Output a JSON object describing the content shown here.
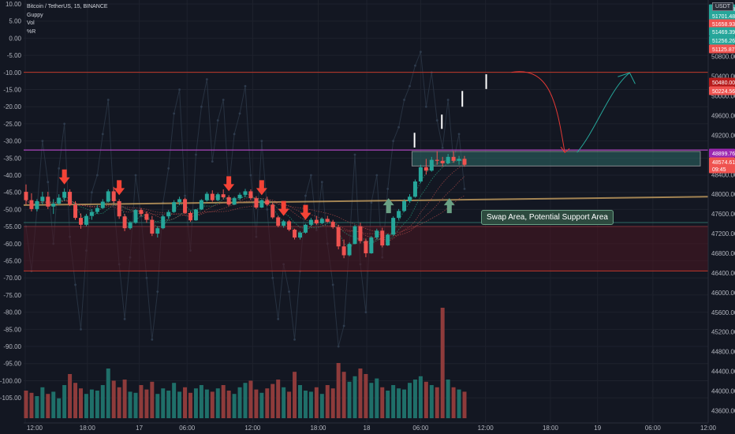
{
  "header": {
    "symbol_line": "Bitcoin / TetherUS, 15, BINANCE",
    "indicators": [
      "Guppy",
      "Vol",
      "%R"
    ]
  },
  "unit_badge": "USDT",
  "annotation": {
    "swap_label": "Swap Area, Potential Support Area"
  },
  "price_badges": [
    {
      "value": "51704.38",
      "color": "#26a69a"
    },
    {
      "value": "51701.48",
      "color": "#26a69a"
    },
    {
      "value": "51658.93",
      "color": "#ef5350"
    },
    {
      "value": "51469.39",
      "color": "#26a69a"
    },
    {
      "value": "51256.26",
      "color": "#26a69a"
    },
    {
      "value": "51125.87",
      "color": "#ef5350"
    },
    {
      "value": "50480.00",
      "color": "#b71c1c"
    },
    {
      "value": "50224.56",
      "color": "#ef5350"
    },
    {
      "value": "48899.76",
      "color": "#9c27b0"
    },
    {
      "value": "48574.61",
      "color": "#ef5350"
    },
    {
      "value": "09:45",
      "color": "#ef5350"
    }
  ],
  "colors": {
    "background": "#131722",
    "up": "#26a69a",
    "down": "#ef5350",
    "resistance_line": "#c0392b",
    "purple_line": "#ab47bc",
    "zone_fill": "#4a1520",
    "swap_box": "#2d6a66",
    "trend_line": "#c8a060",
    "arrow_down": "#f44336",
    "arrow_up": "#6aa084"
  },
  "chart_data": {
    "type": "candlestick",
    "price_axis": {
      "ticks": [
        50800,
        50400,
        50000,
        49600,
        49200,
        48800,
        48400,
        48000,
        47600,
        47200,
        46800,
        46400,
        46000,
        45600,
        45200,
        44800,
        44400,
        44000,
        43600
      ],
      "labels": [
        "50800.00",
        "50400.00",
        "50000.00",
        "49600.00",
        "49200.00",
        "48800.00",
        "48400.00",
        "48000.00",
        "47600.00",
        "47200.00",
        "46800.00",
        "46400.00",
        "46000.00",
        "45600.00",
        "45200.00",
        "44800.00",
        "44400.00",
        "44000.00",
        "43600.00"
      ],
      "range": [
        43350,
        51950
      ]
    },
    "williams_r_axis": {
      "labels": [
        "10.00",
        "5.00",
        "0.00",
        "-5.00",
        "-10.00",
        "-15.00",
        "-20.00",
        "-25.00",
        "-30.00",
        "-35.00",
        "-40.00",
        "-45.00",
        "-50.00",
        "-55.00",
        "-60.00",
        "-65.00",
        "-70.00",
        "-75.00",
        "-80.00",
        "-85.00",
        "-90.00",
        "-95.00",
        "-100.00",
        "-105.00"
      ],
      "range": [
        -107.5,
        10
      ]
    },
    "time_axis": {
      "labels": [
        "12:00",
        "18:00",
        "17",
        "06:00",
        "12:00",
        "18:00",
        "18",
        "06:00",
        "12:00",
        "18:00",
        "19",
        "06:00",
        "12:00"
      ],
      "positions": [
        0.0,
        0.091,
        0.167,
        0.237,
        0.333,
        0.429,
        0.5,
        0.579,
        0.674,
        0.769,
        0.838,
        0.919,
        1.0
      ]
    },
    "levels": {
      "resistance": 50480,
      "purple": 48899.76,
      "swap_box": [
        48574.61,
        48870
      ],
      "trend_line": {
        "from": 47780,
        "to": 47950
      },
      "support_line": 47425,
      "zone": [
        46440,
        47345
      ]
    },
    "candles": [
      [
        48050,
        48200,
        47790,
        47880
      ],
      [
        47880,
        48020,
        47650,
        47700
      ],
      [
        47700,
        47900,
        47650,
        47860
      ],
      [
        47860,
        48050,
        47800,
        47950
      ],
      [
        47950,
        48050,
        47700,
        47750
      ],
      [
        47750,
        47900,
        47600,
        47810
      ],
      [
        47810,
        48000,
        47780,
        47930
      ],
      [
        47930,
        48120,
        47870,
        48050
      ],
      [
        48050,
        48100,
        47760,
        47790
      ],
      [
        47790,
        47860,
        47480,
        47520
      ],
      [
        47520,
        47610,
        47300,
        47380
      ],
      [
        47380,
        47600,
        47350,
        47560
      ],
      [
        47560,
        47700,
        47480,
        47640
      ],
      [
        47640,
        47780,
        47600,
        47720
      ],
      [
        47720,
        47900,
        47700,
        47850
      ],
      [
        47850,
        48100,
        47830,
        48060
      ],
      [
        48060,
        48150,
        47820,
        47860
      ],
      [
        47860,
        47900,
        47500,
        47550
      ],
      [
        47550,
        47600,
        47250,
        47310
      ],
      [
        47310,
        47450,
        47280,
        47420
      ],
      [
        47420,
        47700,
        47400,
        47680
      ],
      [
        47680,
        47720,
        47550,
        47600
      ],
      [
        47600,
        47650,
        47420,
        47480
      ],
      [
        47480,
        47560,
        47150,
        47200
      ],
      [
        47200,
        47350,
        47120,
        47310
      ],
      [
        47310,
        47580,
        47290,
        47550
      ],
      [
        47550,
        47680,
        47500,
        47640
      ],
      [
        47640,
        47880,
        47620,
        47840
      ],
      [
        47840,
        47950,
        47780,
        47900
      ],
      [
        47900,
        47930,
        47600,
        47620
      ],
      [
        47620,
        47650,
        47440,
        47470
      ],
      [
        47470,
        47700,
        47460,
        47690
      ],
      [
        47690,
        47900,
        47680,
        47880
      ],
      [
        47880,
        48050,
        47860,
        48010
      ],
      [
        48010,
        48080,
        47850,
        47880
      ],
      [
        47880,
        48030,
        47860,
        48000
      ],
      [
        48000,
        48100,
        47900,
        47940
      ],
      [
        47940,
        47980,
        47760,
        47790
      ],
      [
        47790,
        47950,
        47780,
        47920
      ],
      [
        47920,
        48030,
        47880,
        47990
      ],
      [
        47990,
        48110,
        47940,
        48060
      ],
      [
        48060,
        48100,
        47880,
        47920
      ],
      [
        47920,
        47960,
        47700,
        47730
      ],
      [
        47730,
        47900,
        47720,
        47880
      ],
      [
        47880,
        47950,
        47760,
        47790
      ],
      [
        47790,
        47830,
        47500,
        47530
      ],
      [
        47530,
        47560,
        47330,
        47360
      ],
      [
        47360,
        47480,
        47320,
        47450
      ],
      [
        47450,
        47480,
        47250,
        47280
      ],
      [
        47280,
        47300,
        47080,
        47120
      ],
      [
        47120,
        47250,
        47080,
        47220
      ],
      [
        47220,
        47400,
        47200,
        47380
      ],
      [
        47380,
        47520,
        47350,
        47480
      ],
      [
        47480,
        47560,
        47380,
        47410
      ],
      [
        47410,
        47530,
        47390,
        47500
      ],
      [
        47500,
        47560,
        47420,
        47440
      ],
      [
        47440,
        47480,
        47300,
        47330
      ],
      [
        47330,
        47380,
        46880,
        46940
      ],
      [
        46940,
        47080,
        46700,
        46760
      ],
      [
        46760,
        47020,
        46740,
        46990
      ],
      [
        46990,
        47380,
        46980,
        47350
      ],
      [
        47350,
        47420,
        47000,
        47050
      ],
      [
        47050,
        47100,
        46720,
        46800
      ],
      [
        46800,
        47150,
        46790,
        47120
      ],
      [
        47120,
        47300,
        47080,
        47260
      ],
      [
        47260,
        47320,
        46920,
        46960
      ],
      [
        46960,
        47200,
        46950,
        47180
      ],
      [
        47180,
        47550,
        47160,
        47520
      ],
      [
        47520,
        47700,
        47480,
        47660
      ],
      [
        47660,
        47900,
        47640,
        47860
      ],
      [
        47860,
        48000,
        47830,
        47950
      ],
      [
        47950,
        48300,
        47930,
        48260
      ],
      [
        48260,
        48600,
        48230,
        48550
      ],
      [
        48550,
        48720,
        48400,
        48480
      ],
      [
        48480,
        48760,
        48460,
        48700
      ],
      [
        48700,
        48880,
        48600,
        48680
      ],
      [
        48680,
        48760,
        48560,
        48630
      ],
      [
        48630,
        48820,
        48610,
        48760
      ],
      [
        48760,
        48880,
        48640,
        48680
      ],
      [
        48680,
        48780,
        48600,
        48720
      ],
      [
        48720,
        48780,
        48560,
        48600
      ]
    ],
    "volumes": [
      0.25,
      0.23,
      0.2,
      0.28,
      0.22,
      0.24,
      0.18,
      0.3,
      0.4,
      0.32,
      0.27,
      0.22,
      0.26,
      0.25,
      0.3,
      0.45,
      0.34,
      0.28,
      0.35,
      0.24,
      0.23,
      0.3,
      0.26,
      0.33,
      0.22,
      0.27,
      0.25,
      0.32,
      0.24,
      0.28,
      0.23,
      0.27,
      0.3,
      0.26,
      0.24,
      0.27,
      0.3,
      0.25,
      0.22,
      0.28,
      0.32,
      0.34,
      0.26,
      0.23,
      0.27,
      0.31,
      0.35,
      0.28,
      0.24,
      0.42,
      0.3,
      0.25,
      0.24,
      0.28,
      0.22,
      0.3,
      0.27,
      0.5,
      0.42,
      0.33,
      0.38,
      0.45,
      0.4,
      0.32,
      0.36,
      0.28,
      0.25,
      0.3,
      0.27,
      0.26,
      0.32,
      0.35,
      0.38,
      0.33,
      0.3,
      0.28,
      1.0,
      0.35,
      0.28,
      0.26,
      0.24
    ],
    "williams_r": [
      -55,
      -68,
      -50,
      -30,
      -42,
      -60,
      -38,
      -25,
      -58,
      -72,
      -85,
      -62,
      -45,
      -40,
      -28,
      -18,
      -48,
      -66,
      -82,
      -64,
      -40,
      -52,
      -70,
      -88,
      -74,
      -48,
      -38,
      -22,
      -15,
      -46,
      -62,
      -34,
      -20,
      -12,
      -36,
      -24,
      -18,
      -44,
      -28,
      -22,
      -14,
      -40,
      -58,
      -30,
      -50,
      -70,
      -82,
      -66,
      -74,
      -88,
      -68,
      -46,
      -40,
      -56,
      -42,
      -60,
      -72,
      -90,
      -84,
      -60,
      -34,
      -66,
      -80,
      -48,
      -40,
      -64,
      -44,
      -30,
      -26,
      -18,
      -14,
      -8,
      -4,
      -20,
      -10,
      -24,
      -32,
      -18,
      -36,
      -28,
      -44
    ],
    "red_arrow_candles": [
      7,
      17,
      37,
      43,
      47,
      51
    ],
    "green_arrow_x": [
      0.532,
      0.621
    ],
    "projection_steps": [
      {
        "x": [
          0.57,
          0.61
        ],
        "p": [
          48950,
          49250
        ]
      },
      {
        "x": [
          0.61,
          0.64
        ],
        "p": [
          49330,
          49620
        ]
      },
      {
        "x": [
          0.64,
          0.675
        ],
        "p": [
          49780,
          50100
        ]
      },
      {
        "x": [
          0.675,
          0.71
        ],
        "p": [
          50140,
          50440
        ]
      }
    ]
  }
}
